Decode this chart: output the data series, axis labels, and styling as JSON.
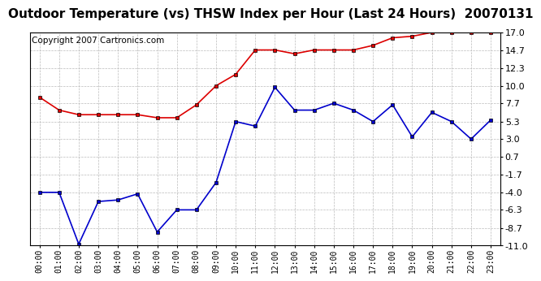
{
  "title": "Outdoor Temperature (vs) THSW Index per Hour (Last 24 Hours)  20070131",
  "copyright_text": "Copyright 2007 Cartronics.com",
  "hours": [
    "00:00",
    "01:00",
    "02:00",
    "03:00",
    "04:00",
    "05:00",
    "06:00",
    "07:00",
    "08:00",
    "09:00",
    "10:00",
    "11:00",
    "12:00",
    "13:00",
    "14:00",
    "15:00",
    "16:00",
    "17:00",
    "18:00",
    "19:00",
    "20:00",
    "21:00",
    "22:00",
    "23:00"
  ],
  "red_data": [
    8.5,
    6.8,
    6.2,
    6.2,
    6.2,
    6.2,
    5.8,
    5.8,
    7.5,
    10.0,
    11.5,
    14.7,
    14.7,
    14.2,
    14.7,
    14.7,
    14.7,
    15.3,
    16.3,
    16.5,
    17.0,
    17.0,
    17.0,
    17.0
  ],
  "blue_data": [
    -4.0,
    -4.0,
    -10.8,
    -5.2,
    -5.0,
    -4.2,
    -9.2,
    -6.3,
    -6.3,
    -2.7,
    5.3,
    4.7,
    9.8,
    6.8,
    6.8,
    7.7,
    6.8,
    5.3,
    7.5,
    3.3,
    6.5,
    5.3,
    3.0,
    5.5
  ],
  "yticks": [
    17.0,
    14.7,
    12.3,
    10.0,
    7.7,
    5.3,
    3.0,
    0.7,
    -1.7,
    -4.0,
    -6.3,
    -8.7,
    -11.0
  ],
  "ymin": -11.0,
  "ymax": 17.0,
  "bg_color": "#ffffff",
  "plot_bg_color": "#ffffff",
  "grid_color": "#bbbbbb",
  "red_color": "#dd0000",
  "blue_color": "#0000cc",
  "title_fontsize": 11,
  "copyright_fontsize": 7.5,
  "tick_fontsize": 8,
  "xtick_fontsize": 7
}
